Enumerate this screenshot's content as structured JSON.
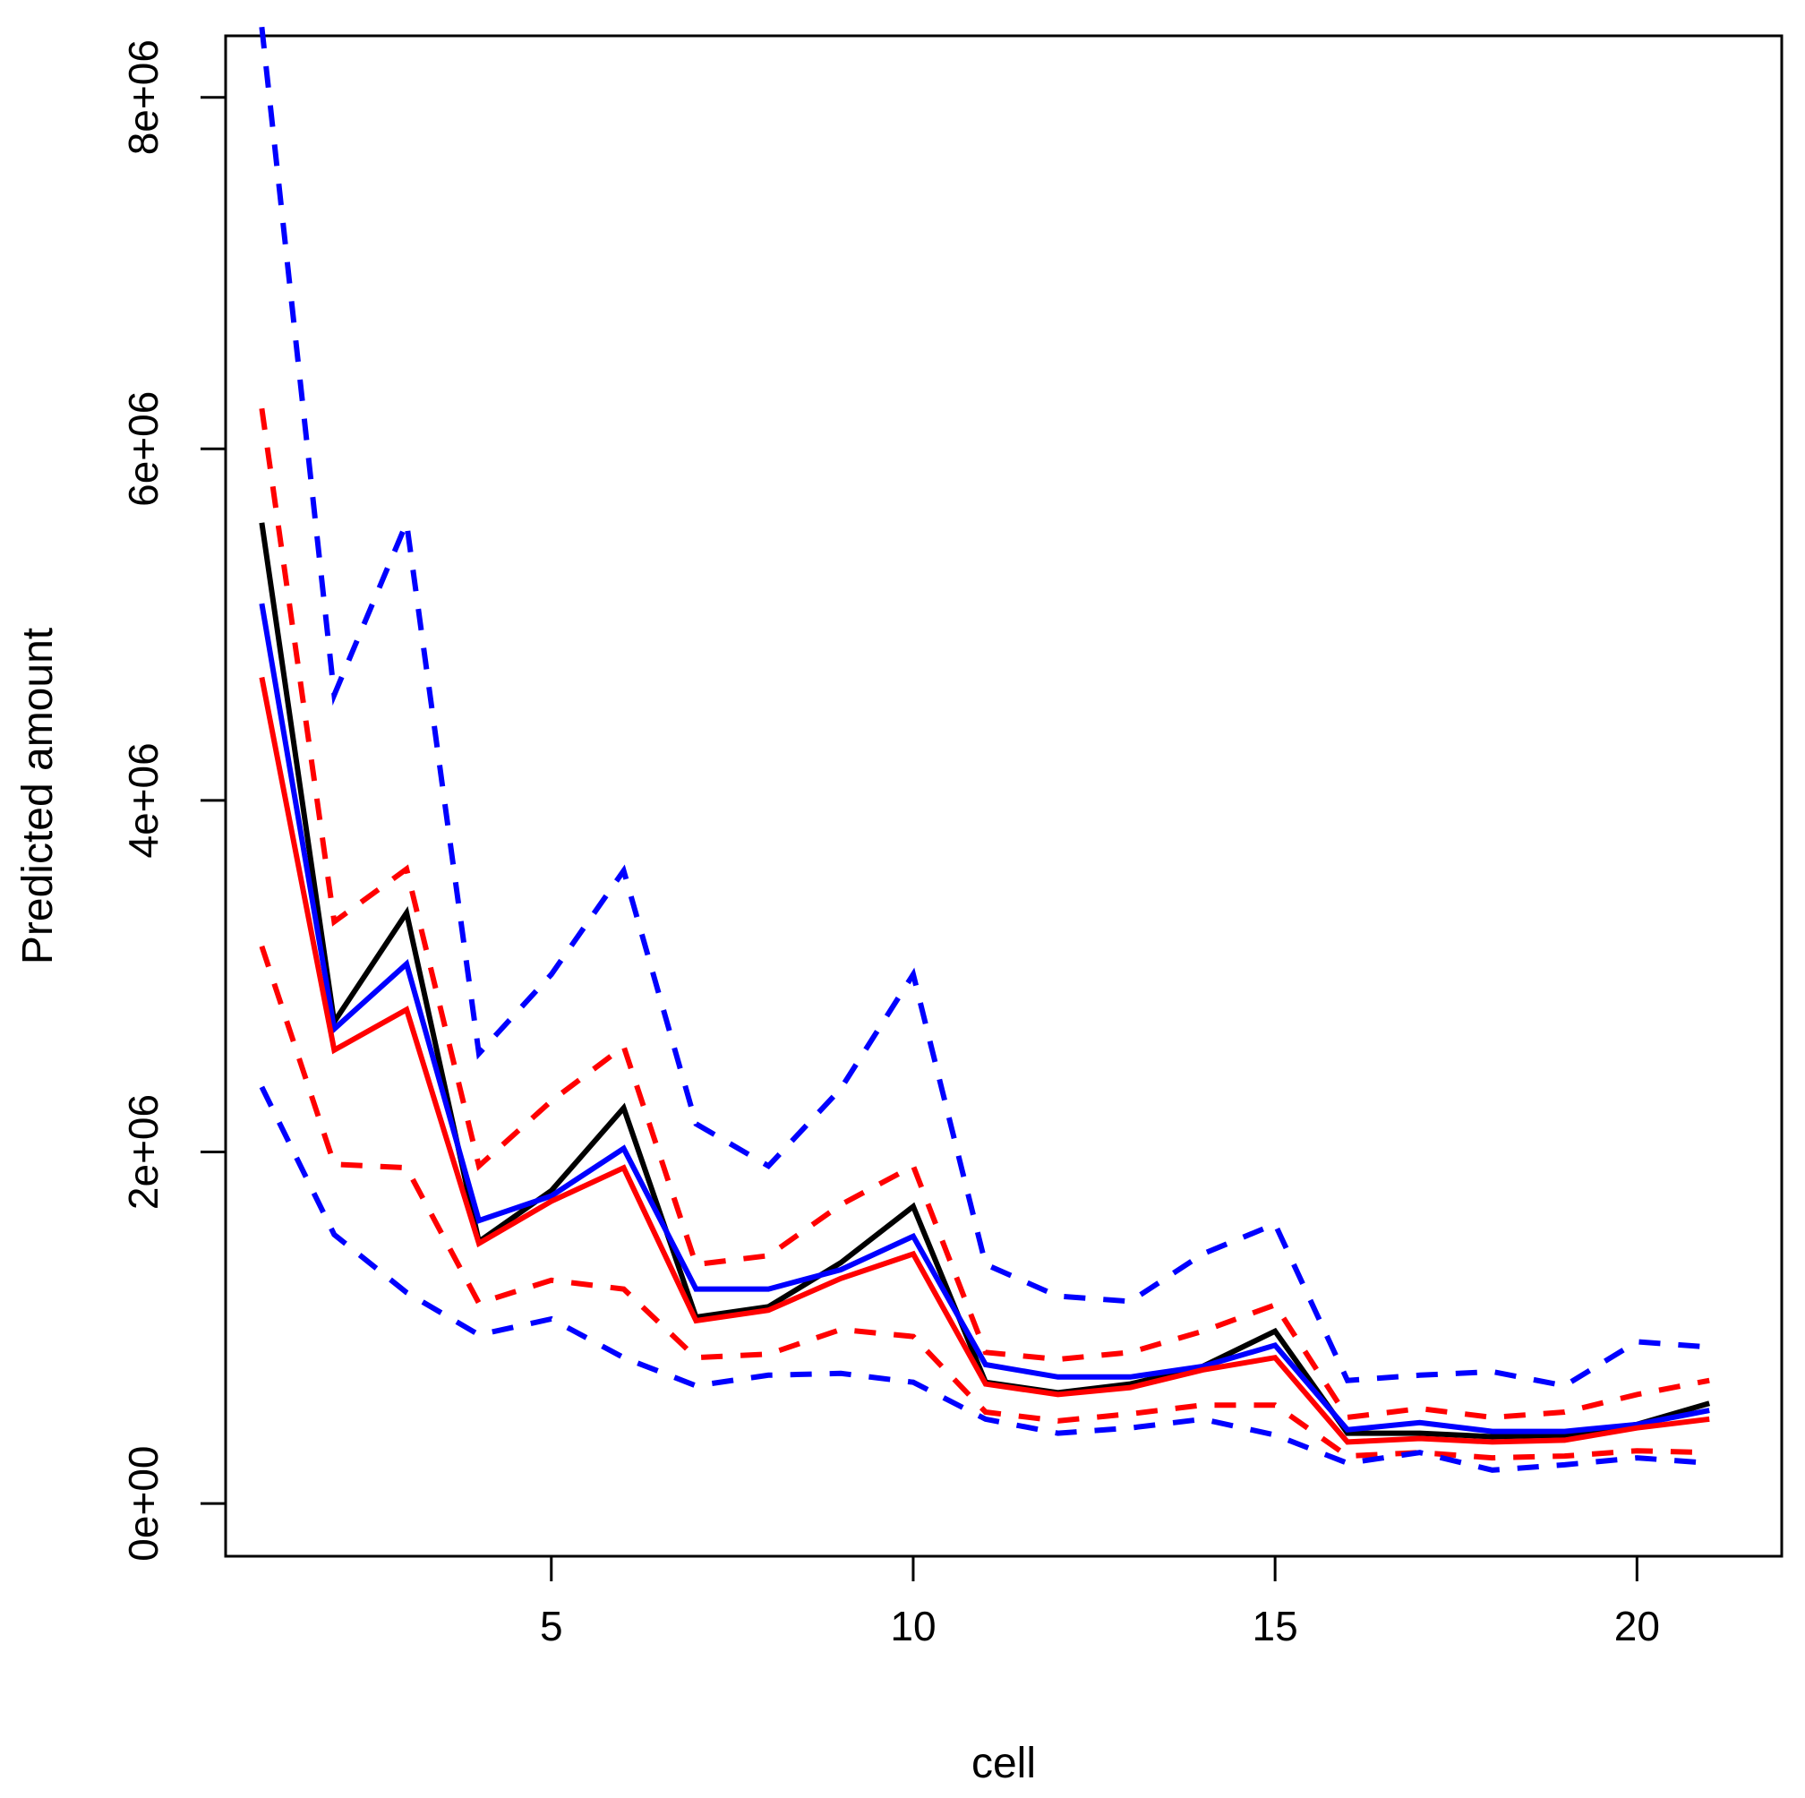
{
  "chart_data": {
    "type": "line",
    "title": "",
    "xlabel": "cell",
    "ylabel": "Predicted amount",
    "x": [
      1,
      2,
      3,
      4,
      5,
      6,
      7,
      8,
      9,
      10,
      11,
      12,
      13,
      14,
      15,
      16,
      17,
      18,
      19,
      20,
      21
    ],
    "xlim": [
      0.5,
      22
    ],
    "ylim": [
      -300000,
      8350000
    ],
    "x_ticks": [
      5,
      10,
      15,
      20
    ],
    "x_tick_labels": [
      "5",
      "10",
      "15",
      "20"
    ],
    "y_ticks": [
      0,
      2000000,
      4000000,
      6000000,
      8000000
    ],
    "y_tick_labels": [
      "0e+00",
      "2e+06",
      "4e+06",
      "6e+06",
      "8e+06"
    ],
    "grid": false,
    "legend": "none",
    "series": [
      {
        "color": "#000000",
        "dash": "solid",
        "values": [
          5580000,
          2740000,
          3360000,
          1490000,
          1780000,
          2250000,
          1060000,
          1120000,
          1370000,
          1690000,
          690000,
          630000,
          680000,
          780000,
          980000,
          400000,
          400000,
          380000,
          390000,
          450000,
          570000
        ]
      },
      {
        "color": "#0000ff",
        "dash": "solid",
        "values": [
          5120000,
          2700000,
          3070000,
          1610000,
          1750000,
          2020000,
          1220000,
          1220000,
          1330000,
          1520000,
          790000,
          720000,
          720000,
          780000,
          900000,
          420000,
          460000,
          410000,
          410000,
          450000,
          530000
        ]
      },
      {
        "color": "#ff0000",
        "dash": "solid",
        "values": [
          4700000,
          2580000,
          2810000,
          1480000,
          1720000,
          1910000,
          1040000,
          1100000,
          1280000,
          1420000,
          680000,
          620000,
          660000,
          760000,
          830000,
          350000,
          370000,
          350000,
          360000,
          430000,
          480000
        ]
      },
      {
        "color": "#ff0000",
        "dash": "dashed",
        "values": [
          6230000,
          3310000,
          3610000,
          1920000,
          2290000,
          2600000,
          1360000,
          1410000,
          1700000,
          1920000,
          860000,
          820000,
          860000,
          980000,
          1130000,
          490000,
          540000,
          490000,
          520000,
          620000,
          700000
        ]
      },
      {
        "color": "#ff0000",
        "dash": "dashed",
        "values": [
          3170000,
          1930000,
          1910000,
          1140000,
          1270000,
          1220000,
          830000,
          850000,
          990000,
          950000,
          520000,
          470000,
          510000,
          560000,
          560000,
          270000,
          290000,
          260000,
          270000,
          300000,
          290000
        ]
      },
      {
        "color": "#0000ff",
        "dash": "dashed",
        "values": [
          8400000,
          4600000,
          5580000,
          2560000,
          3010000,
          3600000,
          2160000,
          1920000,
          2360000,
          3010000,
          1360000,
          1180000,
          1150000,
          1420000,
          1590000,
          700000,
          730000,
          750000,
          670000,
          920000,
          890000
        ]
      },
      {
        "color": "#0000ff",
        "dash": "dashed",
        "values": [
          2370000,
          1530000,
          1200000,
          960000,
          1050000,
          830000,
          670000,
          730000,
          740000,
          690000,
          480000,
          400000,
          430000,
          480000,
          390000,
          230000,
          290000,
          190000,
          220000,
          260000,
          230000
        ]
      }
    ]
  }
}
